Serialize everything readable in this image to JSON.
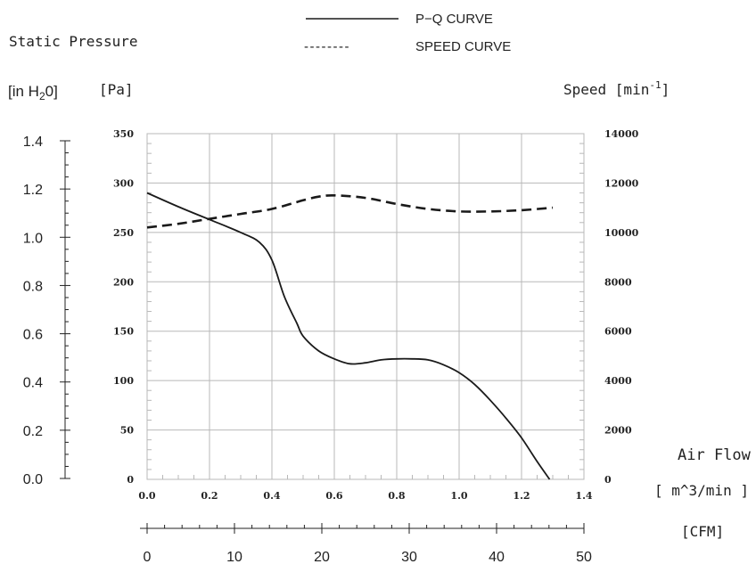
{
  "legend": {
    "pq_label": "P−Q CURVE",
    "speed_label": "SPEED CURVE",
    "speed_dash_text": "--------"
  },
  "labels": {
    "static_pressure": "Static Pressure",
    "in_h2o_prefix": "[in H",
    "in_h2o_sub": "2",
    "in_h2o_suffix": "0]",
    "pa": "[Pa]",
    "speed_prefix": "Speed [min",
    "speed_sup": "-1",
    "speed_suffix": "]",
    "air_flow": "Air Flow",
    "m3min": "[ m^3/min ]",
    "cfm": "[CFM]"
  },
  "colors": {
    "grid": "#b8b8b8",
    "curve": "#1a1a1a",
    "text": "#222222"
  },
  "chart_data": {
    "type": "line",
    "x_axis": {
      "label": "[ m^3/min ]",
      "range": [
        0.0,
        1.4
      ],
      "ticks": [
        "0.0",
        "0.2",
        "0.4",
        "0.6",
        "0.8",
        "1.0",
        "1.2",
        "1.4"
      ]
    },
    "x2_axis": {
      "label": "[CFM]",
      "range": [
        0,
        50
      ],
      "ticks": [
        "0",
        "10",
        "20",
        "30",
        "40",
        "50"
      ]
    },
    "y_axis_pa": {
      "label": "[Pa]",
      "range": [
        0,
        350
      ],
      "ticks": [
        "0",
        "50",
        "100",
        "150",
        "200",
        "250",
        "300",
        "350"
      ]
    },
    "y_axis_inh2o": {
      "range": [
        0.0,
        1.4
      ],
      "ticks": [
        "0.0",
        "0.2",
        "0.4",
        "0.6",
        "0.8",
        "1.0",
        "1.2",
        "1.4"
      ]
    },
    "y2_axis_speed": {
      "range": [
        0,
        14000
      ],
      "ticks": [
        "0",
        "2000",
        "4000",
        "6000",
        "8000",
        "10000",
        "12000",
        "14000"
      ]
    },
    "grid": true,
    "series": [
      {
        "name": "P−Q CURVE",
        "axis": "pa",
        "style": "solid",
        "points": [
          [
            0.0,
            290
          ],
          [
            0.1,
            276
          ],
          [
            0.2,
            263
          ],
          [
            0.3,
            250
          ],
          [
            0.36,
            240
          ],
          [
            0.4,
            222
          ],
          [
            0.44,
            185
          ],
          [
            0.48,
            158
          ],
          [
            0.5,
            145
          ],
          [
            0.55,
            130
          ],
          [
            0.6,
            122
          ],
          [
            0.65,
            117
          ],
          [
            0.7,
            118
          ],
          [
            0.75,
            121
          ],
          [
            0.8,
            122
          ],
          [
            0.85,
            122
          ],
          [
            0.9,
            121
          ],
          [
            0.95,
            116
          ],
          [
            1.0,
            108
          ],
          [
            1.05,
            96
          ],
          [
            1.1,
            80
          ],
          [
            1.15,
            62
          ],
          [
            1.2,
            42
          ],
          [
            1.25,
            18
          ],
          [
            1.29,
            0
          ]
        ]
      },
      {
        "name": "SPEED CURVE",
        "axis": "speed",
        "style": "dashed",
        "points": [
          [
            0.0,
            10200
          ],
          [
            0.1,
            10350
          ],
          [
            0.2,
            10550
          ],
          [
            0.3,
            10750
          ],
          [
            0.4,
            10950
          ],
          [
            0.5,
            11300
          ],
          [
            0.55,
            11450
          ],
          [
            0.6,
            11500
          ],
          [
            0.7,
            11400
          ],
          [
            0.8,
            11150
          ],
          [
            0.9,
            10950
          ],
          [
            1.0,
            10850
          ],
          [
            1.1,
            10850
          ],
          [
            1.2,
            10900
          ],
          [
            1.3,
            11000
          ]
        ]
      }
    ]
  }
}
